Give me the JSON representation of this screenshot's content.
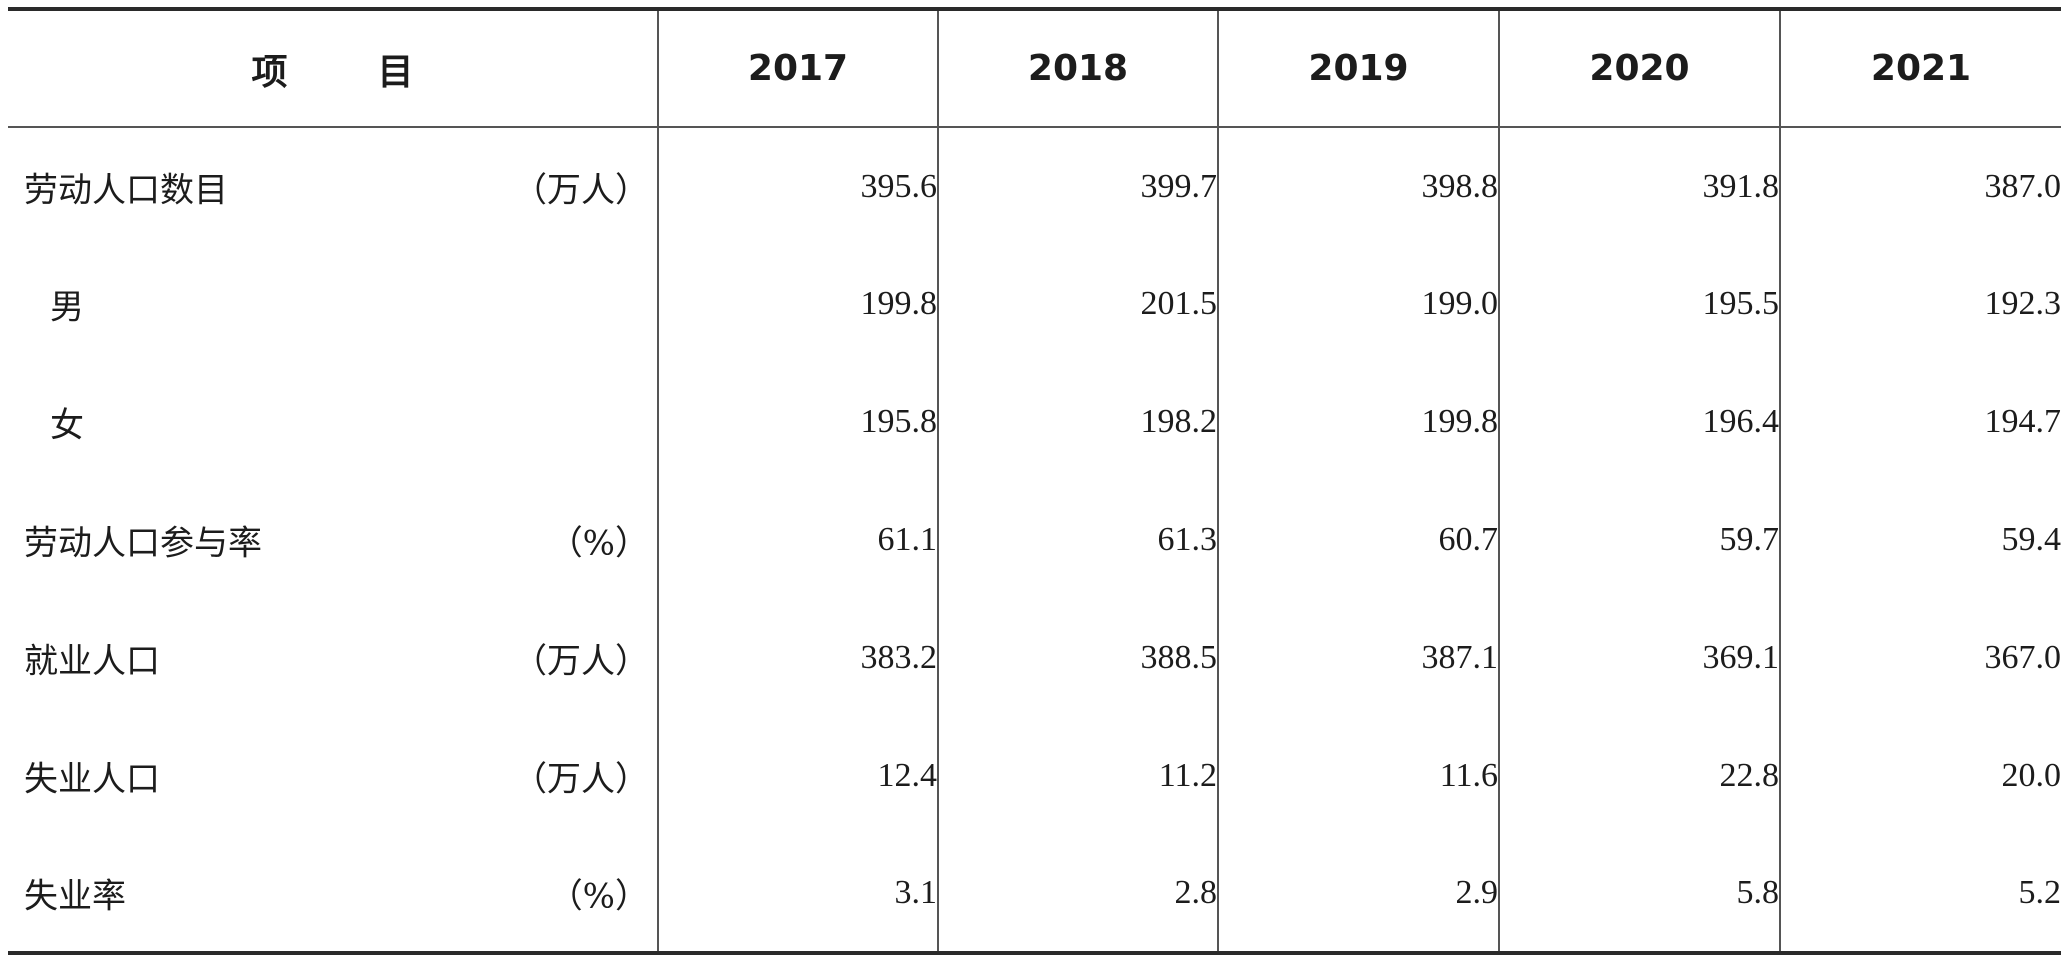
{
  "header": {
    "item_first": "项",
    "item_second": "目",
    "years": [
      "2017",
      "2018",
      "2019",
      "2020",
      "2021"
    ]
  },
  "rows": [
    {
      "label": "劳动人口数目",
      "unit": "（万人）",
      "values": [
        "395.6",
        "399.7",
        "398.8",
        "391.8",
        "387.0"
      ]
    },
    {
      "label": "男",
      "unit": "",
      "values": [
        "199.8",
        "201.5",
        "199.0",
        "195.5",
        "192.3"
      ]
    },
    {
      "label": "女",
      "unit": "",
      "values": [
        "195.8",
        "198.2",
        "199.8",
        "196.4",
        "194.7"
      ]
    },
    {
      "label": "劳动人口参与率",
      "unit": "（%）",
      "values": [
        "61.1",
        "61.3",
        "60.7",
        "59.7",
        "59.4"
      ]
    },
    {
      "label": "就业人口",
      "unit": "（万人）",
      "values": [
        "383.2",
        "388.5",
        "387.1",
        "369.1",
        "367.0"
      ]
    },
    {
      "label": "失业人口",
      "unit": "（万人）",
      "values": [
        "12.4",
        "11.2",
        "11.6",
        "22.8",
        "20.0"
      ]
    },
    {
      "label": "失业率",
      "unit": "（%）",
      "values": [
        "3.1",
        "2.8",
        "2.9",
        "5.8",
        "5.2"
      ]
    }
  ]
}
